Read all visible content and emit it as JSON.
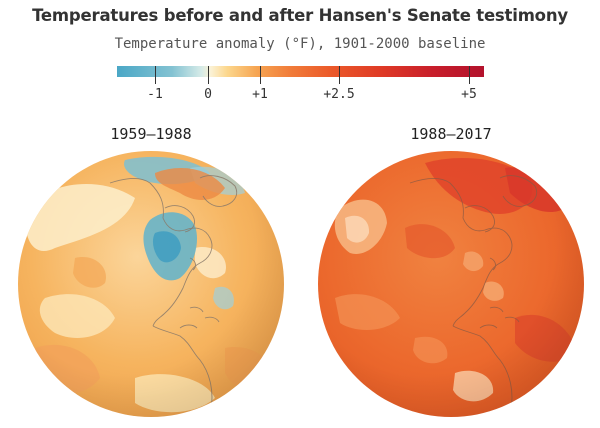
{
  "header": {
    "title": "Temperatures before and after Hansen's Senate testimony",
    "subtitle": "Temperature anomaly (°F), 1901-2000 baseline"
  },
  "legend": {
    "ticks": [
      "-1",
      "0",
      "+1",
      "+2.5",
      "+5"
    ],
    "colors": {
      "coldest": "#4aa7c6",
      "neutral": "#fbf2d6",
      "warm": "#f6a552",
      "hot": "#df3a26",
      "hottest": "#b3122c"
    }
  },
  "maps": [
    {
      "label": "1959—1988",
      "dominant_color": "#f6b45f"
    },
    {
      "label": "1988—2017",
      "dominant_color": "#ec6a2e"
    }
  ]
}
